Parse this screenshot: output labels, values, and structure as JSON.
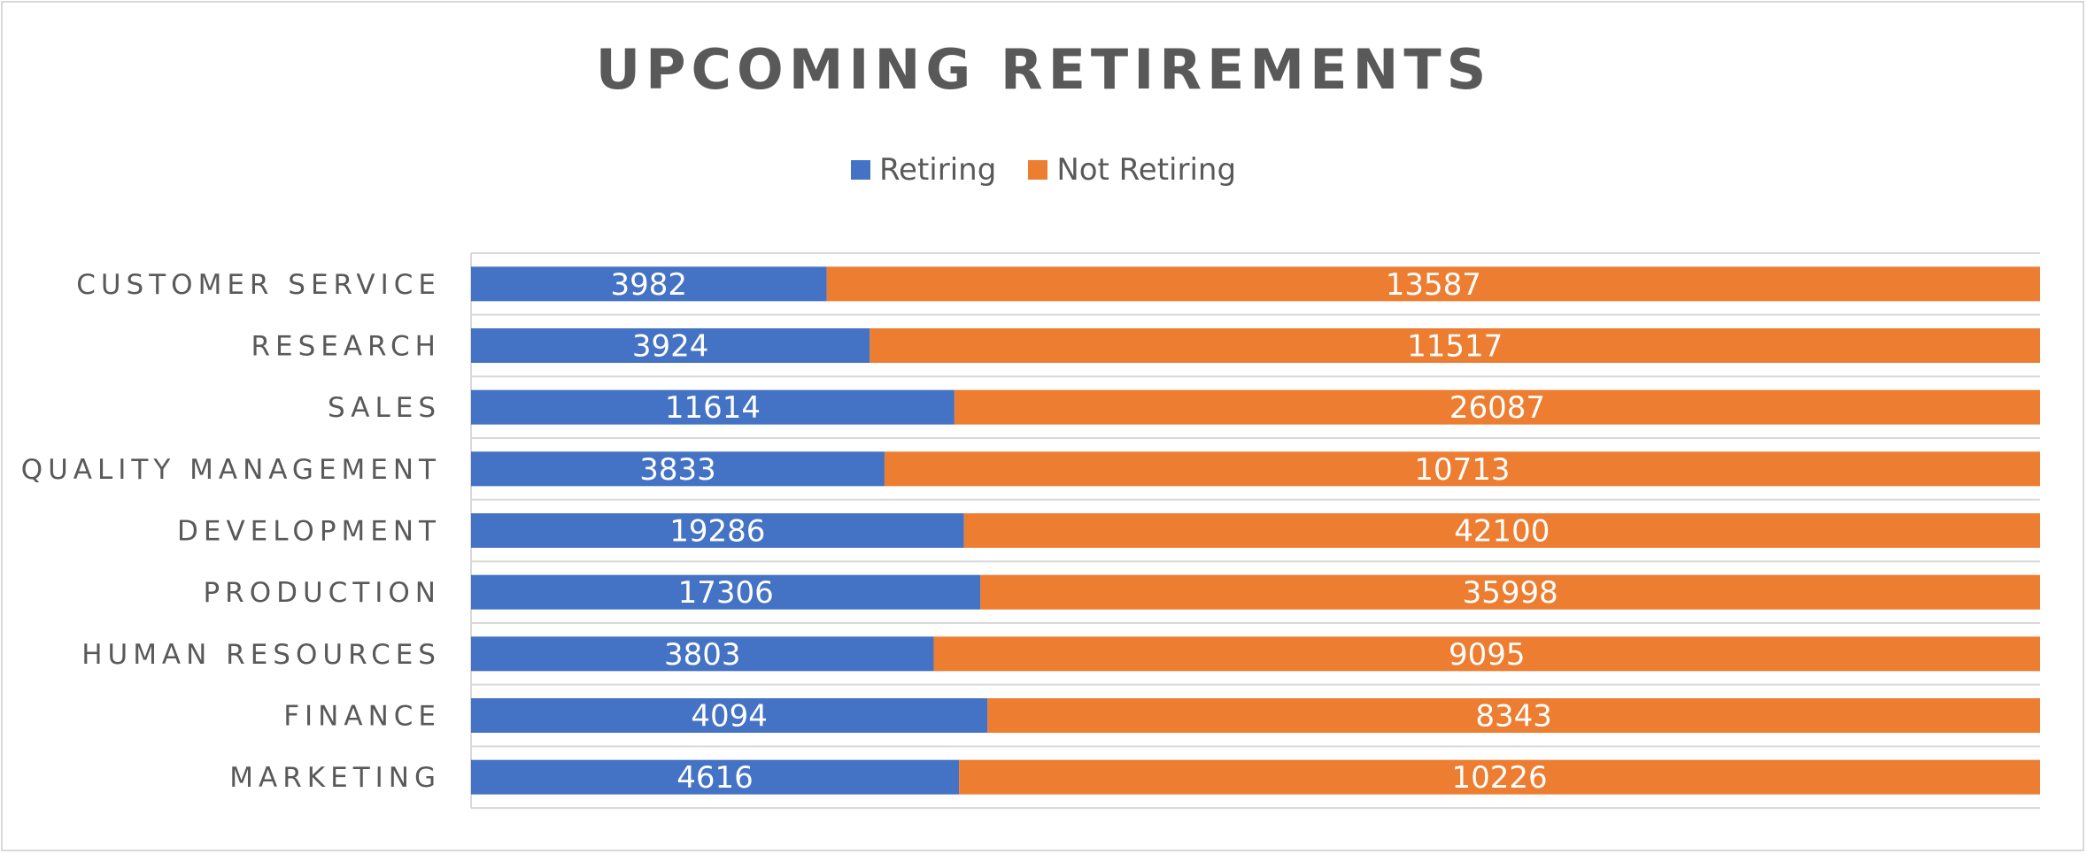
{
  "chart_data": {
    "type": "bar",
    "orientation": "horizontal",
    "stacked": "100%",
    "title": "UPCOMING RETIREMENTS",
    "categories": [
      "CUSTOMER SERVICE",
      "RESEARCH",
      "SALES",
      "QUALITY MANAGEMENT",
      "DEVELOPMENT",
      "PRODUCTION",
      "HUMAN RESOURCES",
      "FINANCE",
      "MARKETING"
    ],
    "series": [
      {
        "name": "Retiring",
        "color": "#4472c4",
        "values": [
          3982,
          3924,
          11614,
          3833,
          19286,
          17306,
          3803,
          4094,
          4616
        ]
      },
      {
        "name": "Not Retiring",
        "color": "#ed7d31",
        "values": [
          13587,
          11517,
          26087,
          10713,
          42100,
          35998,
          9095,
          8343,
          10226
        ]
      }
    ],
    "legend": "top",
    "grid": true
  }
}
